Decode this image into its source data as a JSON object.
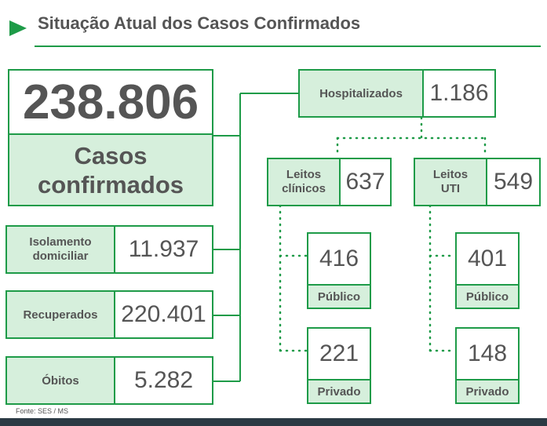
{
  "title": "Situação Atual dos Casos Confirmados",
  "source": "Fonte: SES / MS",
  "total": {
    "value": "238.806",
    "label_line1": "Casos",
    "label_line2": "confirmados"
  },
  "isolamento": {
    "label_line1": "Isolamento",
    "label_line2": "domiciliar",
    "value": "11.937"
  },
  "recuperados": {
    "label": "Recuperados",
    "value": "220.401"
  },
  "obitos": {
    "label": "Óbitos",
    "value": "5.282"
  },
  "hospitalizados": {
    "label": "Hospitalizados",
    "value": "1.186"
  },
  "leitos_clinicos": {
    "label_line1": "Leitos",
    "label_line2": "clínicos",
    "value": "637",
    "publico": {
      "value": "416",
      "label": "Público"
    },
    "privado": {
      "value": "221",
      "label": "Privado"
    }
  },
  "leitos_uti": {
    "label_line1": "Leitos",
    "label_line2": "UTI",
    "value": "549",
    "publico": {
      "value": "401",
      "label": "Público"
    },
    "privado": {
      "value": "148",
      "label": "Privado"
    }
  },
  "colors": {
    "accent": "#1e9b48",
    "label_fill": "#d6efdc",
    "text": "#555555",
    "footer_bar": "#2b3a44"
  }
}
